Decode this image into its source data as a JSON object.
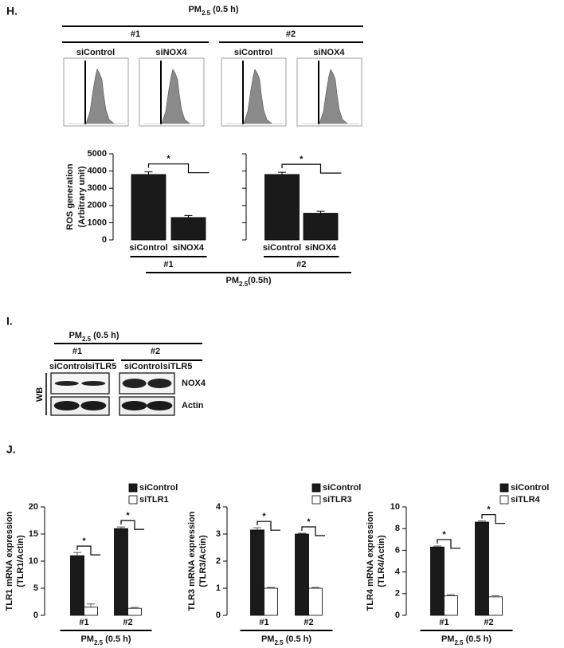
{
  "panel_h": {
    "label": "H.",
    "treatment": {
      "pm": "PM",
      "sub": "2.5",
      "tail": " (0.5 h)"
    },
    "groups": [
      "#1",
      "#2"
    ],
    "flow_labels": [
      "siControl",
      "siNOX4",
      "siControl",
      "siNOX4"
    ],
    "footer_treatment": {
      "pm": "PM",
      "sub": "2.5",
      "tail": "(0.5h)"
    }
  },
  "panel_i": {
    "label": "I.",
    "treatment": {
      "pm": "PM",
      "sub": "2.5",
      "tail": " (0.5 h)"
    },
    "groups": [
      "#1",
      "#2"
    ],
    "lanes": [
      "siControl",
      "siTLR5",
      "siControl",
      "siTLR5"
    ],
    "bands": [
      "NOX4",
      "Actin"
    ],
    "method": "WB"
  },
  "panel_j": {
    "label": "J."
  },
  "chart_data": [
    {
      "type": "bar",
      "ylabel": [
        "ROS generation",
        "(Arbitrary unit)"
      ],
      "categories": [
        "siControl",
        "siNOX4"
      ],
      "values": [
        3800,
        1300
      ],
      "errors": [
        150,
        120
      ],
      "color": "#1a1a1a",
      "ylim": [
        0,
        5000
      ],
      "yticks": [
        0,
        1000,
        2000,
        3000,
        4000,
        5000
      ],
      "significance": "*",
      "group": "#1"
    },
    {
      "type": "bar",
      "categories": [
        "siControl",
        "siNOX4"
      ],
      "values": [
        3800,
        1550
      ],
      "errors": [
        130,
        110
      ],
      "color": "#1a1a1a",
      "ylim": [
        0,
        5000
      ],
      "yticks": [
        0,
        1000,
        2000,
        3000,
        4000,
        5000
      ],
      "ytick_labels": false,
      "significance": "*",
      "group": "#2"
    },
    {
      "type": "bar",
      "ylabel": [
        "TLR1 mRNA expression",
        "(TLR1/Actin)"
      ],
      "categories": [
        "#1",
        "#2"
      ],
      "series": [
        {
          "name": "siControl",
          "color": "#1a1a1a",
          "values": [
            11,
            16
          ],
          "errors": [
            0.6,
            0.3
          ]
        },
        {
          "name": "siTLR1",
          "color": "#ffffff",
          "values": [
            1.5,
            1.3
          ],
          "errors": [
            0.6,
            0.15
          ]
        }
      ],
      "ylim": [
        0,
        20
      ],
      "yticks": [
        0,
        5,
        10,
        15,
        20
      ],
      "significance": "*",
      "treatment": {
        "pm": "PM",
        "sub": "2.5",
        "tail": " (0.5 h)"
      }
    },
    {
      "type": "bar",
      "ylabel": [
        "TLR3 mRNA expression",
        "(TLR3/Actin)"
      ],
      "categories": [
        "#1",
        "#2"
      ],
      "series": [
        {
          "name": "siControl",
          "color": "#1a1a1a",
          "values": [
            3.15,
            3.0
          ],
          "errors": [
            0.08,
            0.03
          ]
        },
        {
          "name": "siTLR3",
          "color": "#ffffff",
          "values": [
            1.0,
            1.0
          ],
          "errors": [
            0.03,
            0.03
          ]
        }
      ],
      "ylim": [
        0,
        4
      ],
      "yticks": [
        0,
        1,
        2,
        3,
        4
      ],
      "significance": "*",
      "treatment": {
        "pm": "PM",
        "sub": "2.5",
        "tail": " (0.5 h)"
      }
    },
    {
      "type": "bar",
      "ylabel": [
        "TLR4 mRNA expression",
        "(TLR4/Actin)"
      ],
      "categories": [
        "#1",
        "#2"
      ],
      "series": [
        {
          "name": "siControl",
          "color": "#1a1a1a",
          "values": [
            6.3,
            8.6
          ],
          "errors": [
            0.1,
            0.1
          ]
        },
        {
          "name": "siTLR4",
          "color": "#ffffff",
          "values": [
            1.8,
            1.7
          ],
          "errors": [
            0.1,
            0.1
          ]
        }
      ],
      "ylim": [
        0,
        10
      ],
      "yticks": [
        0,
        2,
        4,
        6,
        8,
        10
      ],
      "significance": "*",
      "treatment": {
        "pm": "PM",
        "sub": "2.5",
        "tail": " (0.5 h)"
      }
    }
  ]
}
